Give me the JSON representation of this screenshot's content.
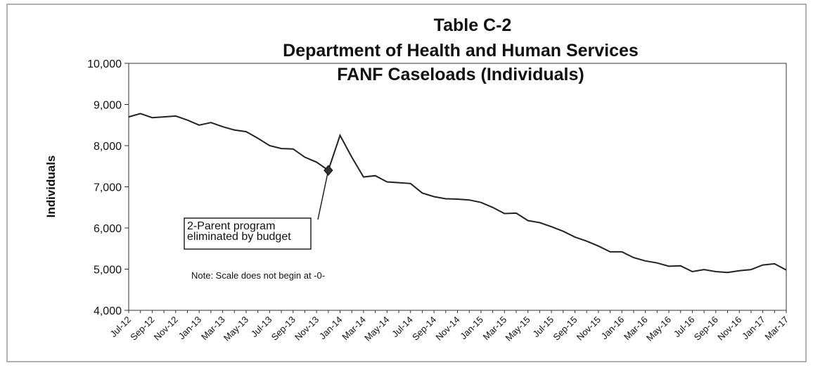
{
  "chart_data": {
    "type": "line",
    "title_lines": [
      "Table C-2",
      "Department of Health and Human Services",
      "FANF Caseloads (Individuals)"
    ],
    "y_label": "Individuals",
    "categories": [
      "Jul-12",
      null,
      "Sep-12",
      null,
      "Nov-12",
      null,
      "Jan-13",
      null,
      "Mar-13",
      null,
      "May-13",
      null,
      "Jul-13",
      null,
      "Sep-13",
      null,
      "Nov-13",
      null,
      "Jan-14",
      null,
      "Mar-14",
      null,
      "May-14",
      null,
      "Jul-14",
      null,
      "Sep-14",
      null,
      "Nov-14",
      null,
      "Jan-15",
      null,
      "Mar-15",
      null,
      "May-15",
      null,
      "Jul-15",
      null,
      "Sep-15",
      null,
      "Nov-15",
      null,
      "Jan-16",
      null,
      "Mar-16",
      null,
      "May-16",
      null,
      "Jul-16",
      null,
      "Sep-16",
      null,
      "Nov-16",
      null,
      "Jan-17",
      null,
      "Mar-17"
    ],
    "series": [
      {
        "name": "Individuals",
        "color": "#222222",
        "values": [
          8700,
          8780,
          8680,
          8700,
          8720,
          8620,
          8500,
          8560,
          8460,
          8380,
          8340,
          8180,
          8000,
          7930,
          7920,
          7720,
          7600,
          7400,
          8250,
          7720,
          7240,
          7270,
          7120,
          7100,
          7080,
          6850,
          6760,
          6710,
          6700,
          6680,
          6620,
          6500,
          6350,
          6360,
          6180,
          6130,
          6030,
          5920,
          5780,
          5680,
          5560,
          5420,
          5420,
          5280,
          5200,
          5150,
          5070,
          5080,
          4940,
          4990,
          4940,
          4920,
          4960,
          4990,
          5100,
          5130,
          4980
        ]
      }
    ],
    "ylim": [
      4000,
      10000
    ],
    "yticks": [
      {
        "value": 4000,
        "label": "4,000"
      },
      {
        "value": 5000,
        "label": "5,000"
      },
      {
        "value": 6000,
        "label": "6,000"
      },
      {
        "value": 7000,
        "label": "7,000"
      },
      {
        "value": 8000,
        "label": "8,000"
      },
      {
        "value": 9000,
        "label": "9,000"
      },
      {
        "value": 10000,
        "label": "10,000"
      }
    ],
    "annotation": {
      "lines": [
        "2-Parent program",
        "eliminated by budget"
      ],
      "point_index": 17
    },
    "note": "Note:  Scale does not begin at -0-"
  }
}
